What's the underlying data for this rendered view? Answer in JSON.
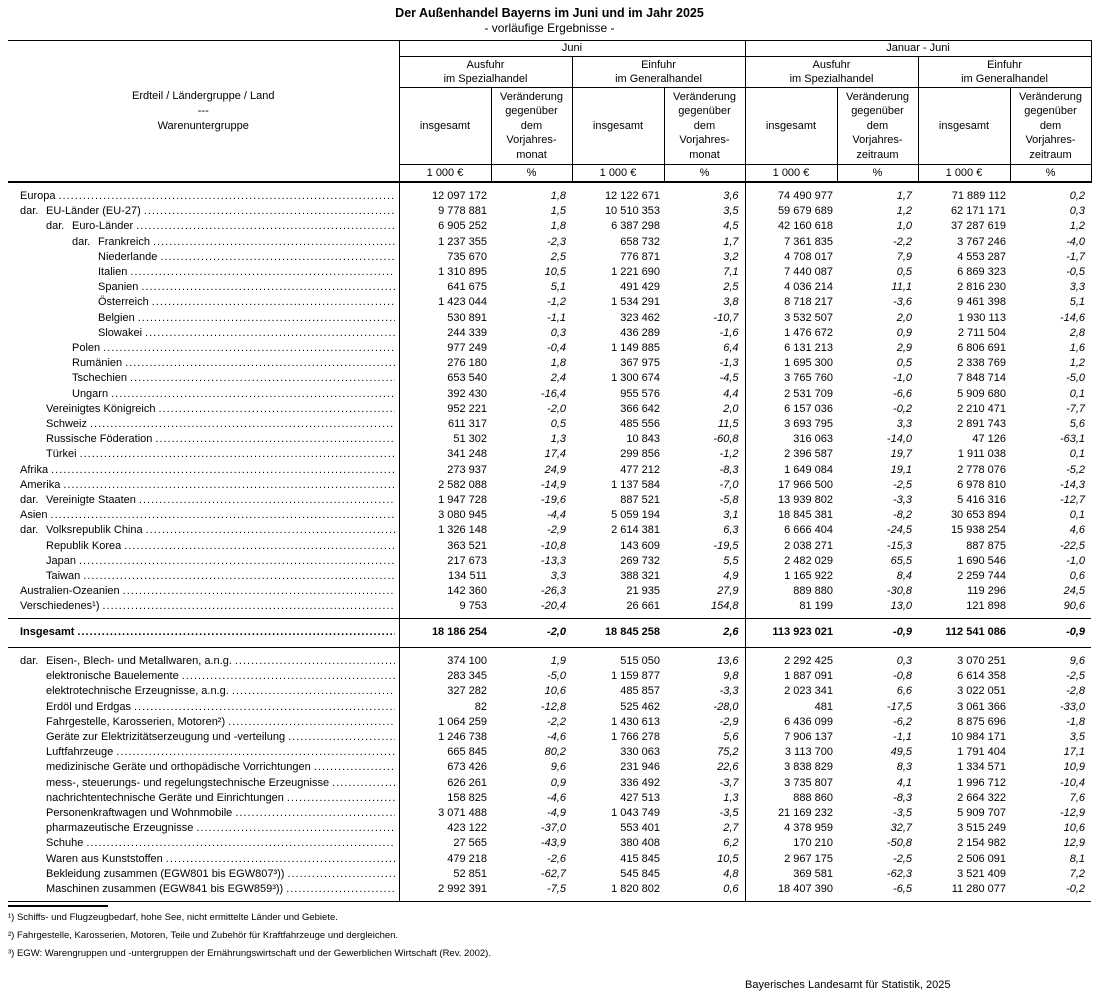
{
  "title": "Der Außenhandel Bayerns im Juni und im Jahr 2025",
  "subtitle": "- vorläufige Ergebnisse -",
  "header": {
    "stub": {
      "line1": "Erdteil / Ländergruppe / Land",
      "sep": "---",
      "line2": "Warenuntergruppe"
    },
    "periods": [
      "Juni",
      "Januar - Juni"
    ],
    "flow_headers": {
      "ausfuhr": "Ausfuhr\nim Spezialhandel",
      "einfuhr": "Einfuhr\nim Generalhandel"
    },
    "measure_headers": {
      "insgesamt": "insgesamt",
      "change_month": "Veränderung\ngegenüber\ndem\nVorjahres-\nmonat",
      "change_period": "Veränderung\ngegenüber\ndem\nVorjahres-\nzeitraum"
    },
    "units": {
      "value": "1 000 €",
      "pct": "%"
    }
  },
  "regions": [
    {
      "label": "Europa",
      "indent": 0,
      "values": [
        "12 097 172",
        "1,8",
        "12 122 671",
        "3,6",
        "74 490 977",
        "1,7",
        "71 889 112",
        "0,2"
      ]
    },
    {
      "prefix": "dar.",
      "label": "EU-Länder (EU-27)",
      "indent": 0,
      "values": [
        "9 778 881",
        "1,5",
        "10 510 353",
        "3,5",
        "59 679 689",
        "1,2",
        "62 171 171",
        "0,3"
      ]
    },
    {
      "prefix": "dar.",
      "label": "Euro-Länder",
      "indent": 1,
      "values": [
        "6 905 252",
        "1,8",
        "6 387 298",
        "4,5",
        "42 160 618",
        "1,0",
        "37 287 619",
        "1,2"
      ]
    },
    {
      "prefix": "dar.",
      "label": "Frankreich",
      "indent": 2,
      "values": [
        "1 237 355",
        "-2,3",
        "658 732",
        "1,7",
        "7 361 835",
        "-2,2",
        "3 767 246",
        "-4,0"
      ]
    },
    {
      "label": "Niederlande",
      "indent": 3,
      "values": [
        "735 670",
        "2,5",
        "776 871",
        "3,2",
        "4 708 017",
        "7,9",
        "4 553 287",
        "-1,7"
      ]
    },
    {
      "label": "Italien",
      "indent": 3,
      "values": [
        "1 310 895",
        "10,5",
        "1 221 690",
        "7,1",
        "7 440 087",
        "0,5",
        "6 869 323",
        "-0,5"
      ]
    },
    {
      "label": "Spanien",
      "indent": 3,
      "values": [
        "641 675",
        "5,1",
        "491 429",
        "2,5",
        "4 036 214",
        "11,1",
        "2 816 230",
        "3,3"
      ]
    },
    {
      "label": "Österreich",
      "indent": 3,
      "values": [
        "1 423 044",
        "-1,2",
        "1 534 291",
        "3,8",
        "8 718 217",
        "-3,6",
        "9 461 398",
        "5,1"
      ]
    },
    {
      "label": "Belgien",
      "indent": 3,
      "values": [
        "530 891",
        "-1,1",
        "323 462",
        "-10,7",
        "3 532 507",
        "2,0",
        "1 930 113",
        "-14,6"
      ]
    },
    {
      "label": "Slowakei",
      "indent": 3,
      "values": [
        "244 339",
        "0,3",
        "436 289",
        "-1,6",
        "1 476 672",
        "0,9",
        "2 711 504",
        "2,8"
      ]
    },
    {
      "label": "Polen",
      "indent": 2,
      "values": [
        "977 249",
        "-0,4",
        "1 149 885",
        "6,4",
        "6 131 213",
        "2,9",
        "6 806 691",
        "1,6"
      ]
    },
    {
      "label": "Rumänien",
      "indent": 2,
      "values": [
        "276 180",
        "1,8",
        "367 975",
        "-1,3",
        "1 695 300",
        "0,5",
        "2 338 769",
        "1,2"
      ]
    },
    {
      "label": "Tschechien",
      "indent": 2,
      "values": [
        "653 540",
        "2,4",
        "1 300 674",
        "-4,5",
        "3 765 760",
        "-1,0",
        "7 848 714",
        "-5,0"
      ]
    },
    {
      "label": "Ungarn",
      "indent": 2,
      "values": [
        "392 430",
        "-16,4",
        "955 576",
        "4,4",
        "2 531 709",
        "-6,6",
        "5 909 680",
        "0,1"
      ]
    },
    {
      "label": "Vereinigtes Königreich",
      "indent": 1,
      "values": [
        "952 221",
        "-2,0",
        "366 642",
        "2,0",
        "6 157 036",
        "-0,2",
        "2 210 471",
        "-7,7"
      ]
    },
    {
      "label": "Schweiz",
      "indent": 1,
      "values": [
        "611 317",
        "0,5",
        "485 556",
        "11,5",
        "3 693 795",
        "3,3",
        "2 891 743",
        "5,6"
      ]
    },
    {
      "label": "Russische Föderation",
      "indent": 1,
      "values": [
        "51 302",
        "1,3",
        "10 843",
        "-60,8",
        "316 063",
        "-14,0",
        "47 126",
        "-63,1"
      ]
    },
    {
      "label": "Türkei",
      "indent": 1,
      "values": [
        "341 248",
        "17,4",
        "299 856",
        "-1,2",
        "2 396 587",
        "19,7",
        "1 911 038",
        "0,1"
      ]
    },
    {
      "label": "Afrika",
      "indent": 0,
      "values": [
        "273 937",
        "24,9",
        "477 212",
        "-8,3",
        "1 649 084",
        "19,1",
        "2 778 076",
        "-5,2"
      ]
    },
    {
      "label": "Amerika",
      "indent": 0,
      "values": [
        "2 582 088",
        "-14,9",
        "1 137 584",
        "-7,0",
        "17 966 500",
        "-2,5",
        "6 978 810",
        "-14,3"
      ]
    },
    {
      "prefix": "dar.",
      "label": "Vereinigte Staaten",
      "indent": 0,
      "values": [
        "1 947 728",
        "-19,6",
        "887 521",
        "-5,8",
        "13 939 802",
        "-3,3",
        "5 416 316",
        "-12,7"
      ]
    },
    {
      "label": "Asien",
      "indent": 0,
      "values": [
        "3 080 945",
        "-4,4",
        "5 059 194",
        "3,1",
        "18 845 381",
        "-8,2",
        "30 653 894",
        "0,1"
      ]
    },
    {
      "prefix": "dar.",
      "label": "Volksrepublik China",
      "indent": 0,
      "values": [
        "1 326 148",
        "-2,9",
        "2 614 381",
        "6,3",
        "6 666 404",
        "-24,5",
        "15 938 254",
        "4,6"
      ]
    },
    {
      "label": "Republik Korea",
      "indent": 1,
      "values": [
        "363 521",
        "-10,8",
        "143 609",
        "-19,5",
        "2 038 271",
        "-15,3",
        "887 875",
        "-22,5"
      ]
    },
    {
      "label": "Japan",
      "indent": 1,
      "values": [
        "217 673",
        "-13,3",
        "269 732",
        "5,5",
        "2 482 029",
        "65,5",
        "1 690 546",
        "-1,0"
      ]
    },
    {
      "label": "Taiwan",
      "indent": 1,
      "values": [
        "134 511",
        "3,3",
        "388 321",
        "4,9",
        "1 165 922",
        "8,4",
        "2 259 744",
        "0,6"
      ]
    },
    {
      "label": "Australien-Ozeanien",
      "indent": 0,
      "values": [
        "142 360",
        "-26,3",
        "21 935",
        "27,9",
        "889 880",
        "-30,8",
        "119 296",
        "24,5"
      ]
    },
    {
      "label": "Verschiedenes¹)",
      "indent": 0,
      "values": [
        "9 753",
        "-20,4",
        "26 661",
        "154,8",
        "81 199",
        "13,0",
        "121 898",
        "90,6"
      ]
    }
  ],
  "total": {
    "label": "Insgesamt",
    "indent": 0,
    "values": [
      "18 186 254",
      "-2,0",
      "18 845 258",
      "2,6",
      "113 923 021",
      "-0,9",
      "112 541 086",
      "-0,9"
    ]
  },
  "products": [
    {
      "prefix": "dar.",
      "label": "Eisen-, Blech- und Metallwaren, a.n.g.",
      "indent": 0,
      "values": [
        "374 100",
        "1,9",
        "515 050",
        "13,6",
        "2 292 425",
        "0,3",
        "3 070 251",
        "9,6"
      ]
    },
    {
      "label": "elektronische Bauelemente",
      "indent": 1,
      "values": [
        "283 345",
        "-5,0",
        "1 159 877",
        "9,8",
        "1 887 091",
        "-0,8",
        "6 614 358",
        "-2,5"
      ]
    },
    {
      "label": "elektrotechnische Erzeugnisse, a.n.g.",
      "indent": 1,
      "values": [
        "327 282",
        "10,6",
        "485 857",
        "-3,3",
        "2 023 341",
        "6,6",
        "3 022 051",
        "-2,8"
      ]
    },
    {
      "label": "Erdöl und Erdgas",
      "indent": 1,
      "values": [
        "82",
        "-12,8",
        "525 462",
        "-28,0",
        "481",
        "-17,5",
        "3 061 366",
        "-33,0"
      ]
    },
    {
      "label": "Fahrgestelle, Karosserien, Motoren²)",
      "indent": 1,
      "values": [
        "1 064 259",
        "-2,2",
        "1 430 613",
        "-2,9",
        "6 436 099",
        "-6,2",
        "8 875 696",
        "-1,8"
      ]
    },
    {
      "label": "Geräte zur Elektrizitätserzeugung und -verteilung",
      "indent": 1,
      "values": [
        "1 246 738",
        "-4,6",
        "1 766 278",
        "5,6",
        "7 906 137",
        "-1,1",
        "10 984 171",
        "3,5"
      ]
    },
    {
      "label": "Luftfahrzeuge",
      "indent": 1,
      "values": [
        "665 845",
        "80,2",
        "330 063",
        "75,2",
        "3 113 700",
        "49,5",
        "1 791 404",
        "17,1"
      ]
    },
    {
      "label": "medizinische Geräte und orthopädische Vorrichtungen",
      "indent": 1,
      "values": [
        "673 426",
        "9,6",
        "231 946",
        "22,6",
        "3 838 829",
        "8,3",
        "1 334 571",
        "10,9"
      ]
    },
    {
      "label": "mess-, steuerungs- und regelungstechnische Erzeugnisse",
      "indent": 1,
      "values": [
        "626 261",
        "0,9",
        "336 492",
        "-3,7",
        "3 735 807",
        "4,1",
        "1 996 712",
        "-10,4"
      ]
    },
    {
      "label": "nachrichtentechnische Geräte und Einrichtungen",
      "indent": 1,
      "values": [
        "158 825",
        "-4,6",
        "427 513",
        "1,3",
        "888 860",
        "-8,3",
        "2 664 322",
        "7,6"
      ]
    },
    {
      "label": "Personenkraftwagen und Wohnmobile",
      "indent": 1,
      "values": [
        "3 071 488",
        "-4,9",
        "1 043 749",
        "-3,5",
        "21 169 232",
        "-3,5",
        "5 909 707",
        "-12,9"
      ]
    },
    {
      "label": "pharmazeutische Erzeugnisse",
      "indent": 1,
      "values": [
        "423 122",
        "-37,0",
        "553 401",
        "2,7",
        "4 378 959",
        "32,7",
        "3 515 249",
        "10,6"
      ]
    },
    {
      "label": "Schuhe",
      "indent": 1,
      "values": [
        "27 565",
        "-43,9",
        "380 408",
        "6,2",
        "170 210",
        "-50,8",
        "2 154 982",
        "12,9"
      ]
    },
    {
      "label": "Waren aus Kunststoffen",
      "indent": 1,
      "values": [
        "479 218",
        "-2,6",
        "415 845",
        "10,5",
        "2 967 175",
        "-2,5",
        "2 506 091",
        "8,1"
      ]
    },
    {
      "label": "Bekleidung zusammen (EGW801 bis EGW807³))",
      "indent": 1,
      "values": [
        "52 851",
        "-62,7",
        "545 845",
        "4,8",
        "369 581",
        "-62,3",
        "3 521 409",
        "7,2"
      ]
    },
    {
      "label": "Maschinen zusammen (EGW841 bis EGW859³))",
      "indent": 1,
      "values": [
        "2 992 391",
        "-7,5",
        "1 820 802",
        "0,6",
        "18 407 390",
        "-6,5",
        "11 280 077",
        "-0,2"
      ]
    }
  ],
  "footnotes": [
    "¹) Schiffs- und Flugzeugbedarf, hohe See, nicht ermittelte Länder und Gebiete.",
    "²) Fahrgestelle, Karosserien, Motoren, Teile und Zubehör für Kraftfahrzeuge und dergleichen.",
    "³) EGW: Warengruppen und -untergruppen der Ernährungswirtschaft und der Gewerblichen Wirtschaft (Rev. 2002)."
  ],
  "source": "Bayerisches Landesamt für Statistik, 2025"
}
